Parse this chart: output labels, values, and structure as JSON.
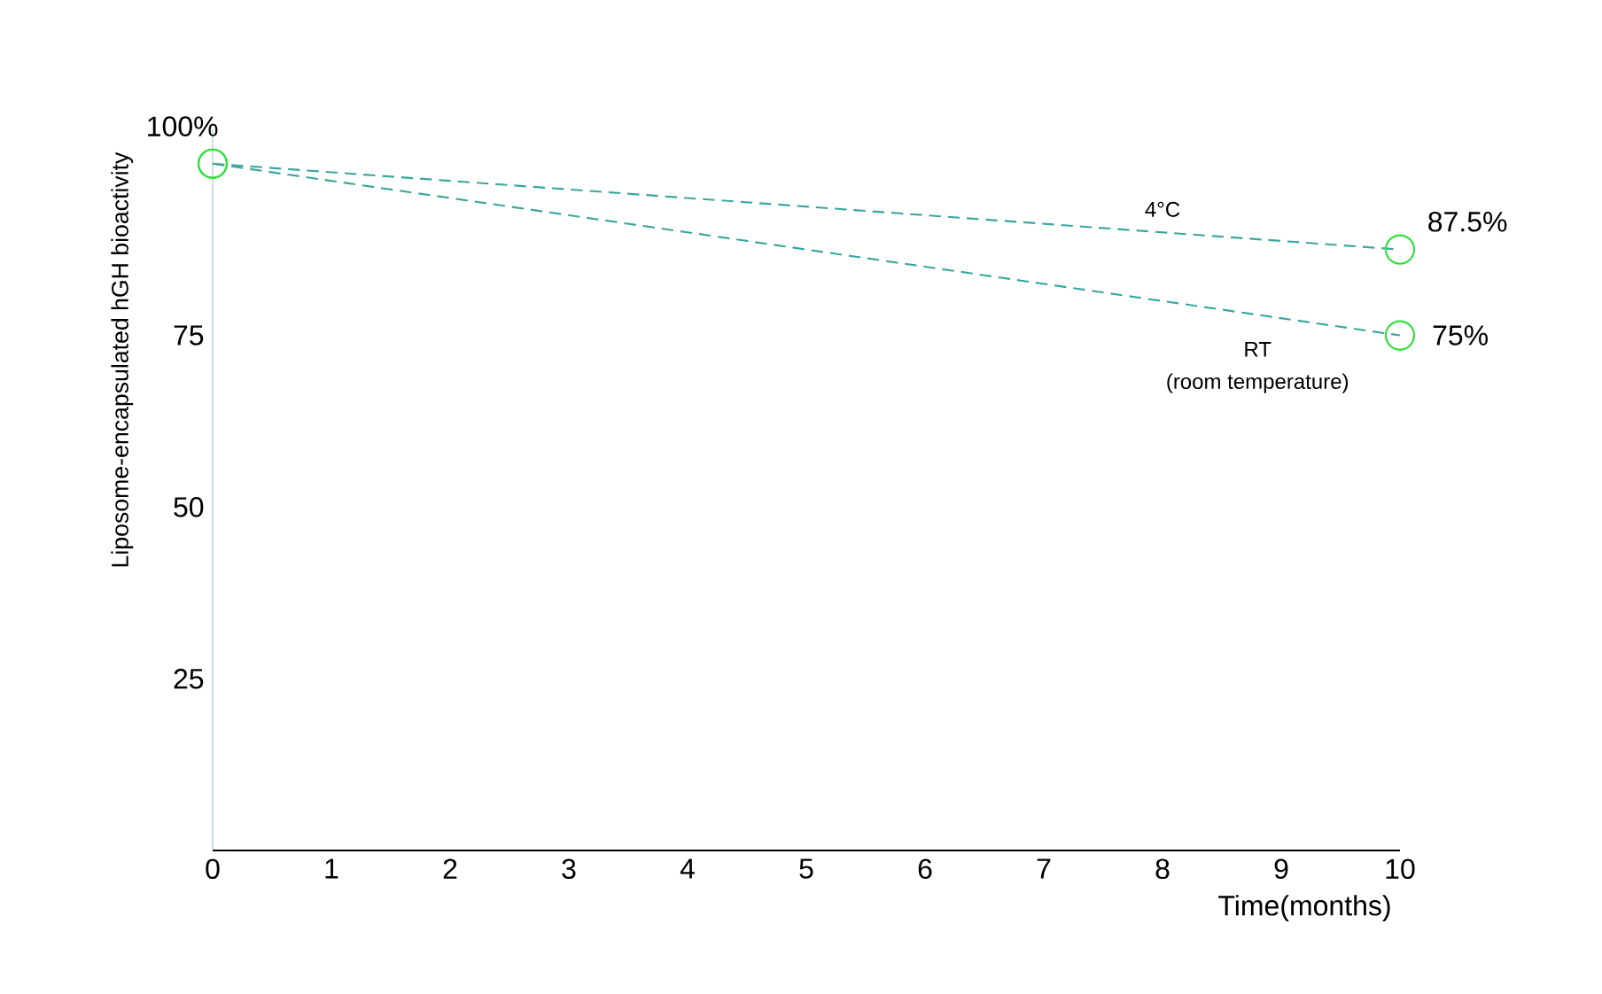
{
  "chart_data": {
    "type": "line",
    "xlabel": "Time(months)",
    "ylabel": "Liposome-encapsulated hGH bioactivity",
    "x": [
      0,
      10
    ],
    "xlim": [
      0,
      10
    ],
    "ylim": [
      0,
      105
    ],
    "xticks": [
      0,
      1,
      2,
      3,
      4,
      5,
      6,
      7,
      8,
      9,
      10
    ],
    "yticks": [
      25,
      50,
      75
    ],
    "marker": "circle",
    "line_style": "dashed",
    "grid": false,
    "annotations": [
      "(room temperature)"
    ],
    "series": [
      {
        "name": "4°C",
        "color": "#3aa6a0",
        "values": [
          100,
          87.5
        ],
        "value_labels": [
          "100%",
          "87.5%"
        ]
      },
      {
        "name": "RT",
        "color": "#3aa6a0",
        "values": [
          100,
          75
        ],
        "value_labels": [
          null,
          "75%"
        ]
      }
    ]
  }
}
